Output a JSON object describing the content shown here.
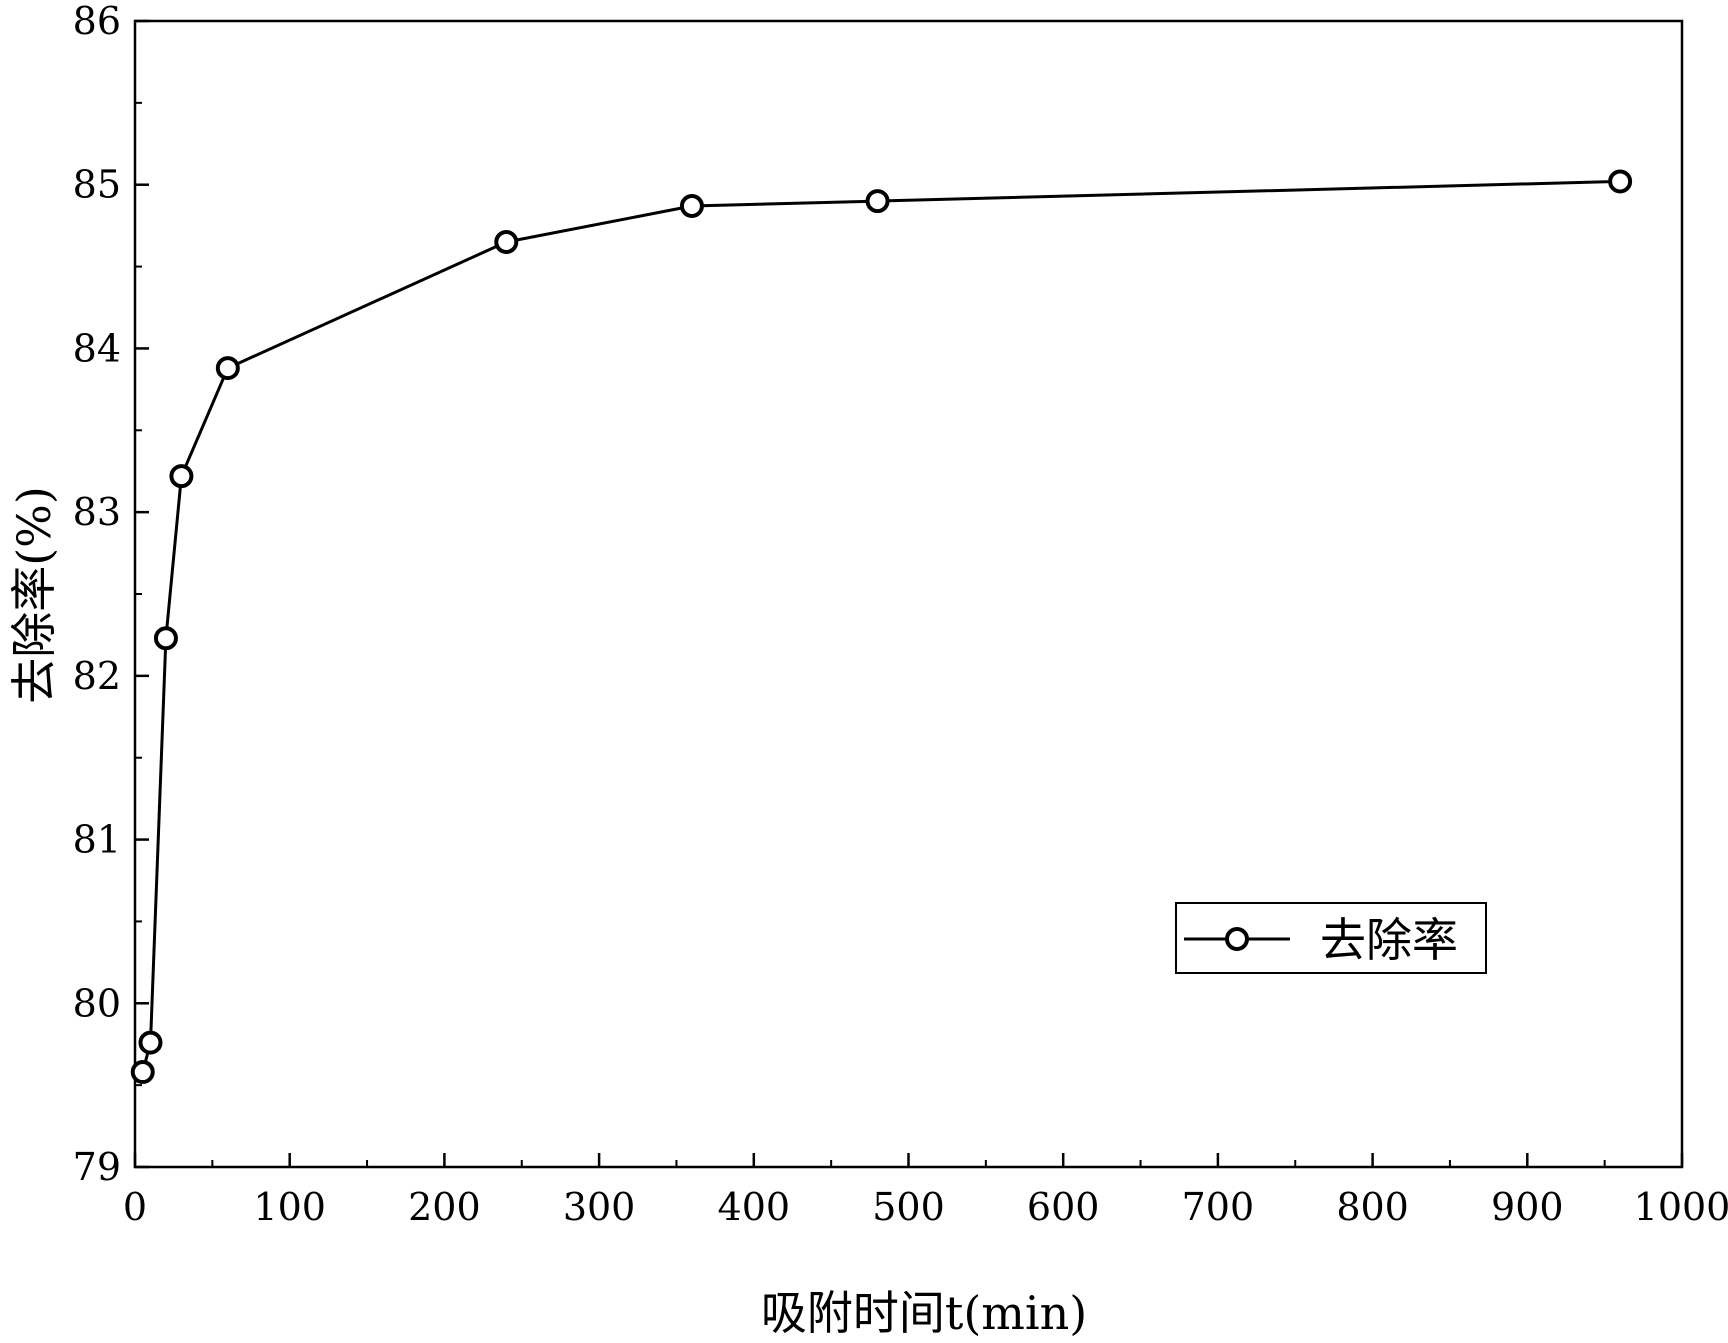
{
  "chart_data": {
    "type": "line",
    "title": "",
    "xlabel": "吸附时间t(min)",
    "ylabel": "去除率(%)",
    "xlim": [
      0,
      1000
    ],
    "ylim": [
      79,
      86
    ],
    "x_ticks": [
      "0",
      "100",
      "200",
      "300",
      "400",
      "500",
      "600",
      "700",
      "800",
      "900",
      "1000"
    ],
    "y_ticks": [
      "79",
      "80",
      "81",
      "82",
      "83",
      "84",
      "85",
      "86"
    ],
    "grid": false,
    "legend_position": "lower-right",
    "series": [
      {
        "name": "去除率",
        "marker": "open-circle",
        "color": "#000000",
        "x": [
          5,
          10,
          20,
          30,
          60,
          240,
          360,
          480,
          960
        ],
        "y": [
          79.58,
          79.76,
          82.23,
          83.22,
          83.88,
          84.65,
          84.87,
          84.9,
          85.02
        ]
      }
    ]
  }
}
